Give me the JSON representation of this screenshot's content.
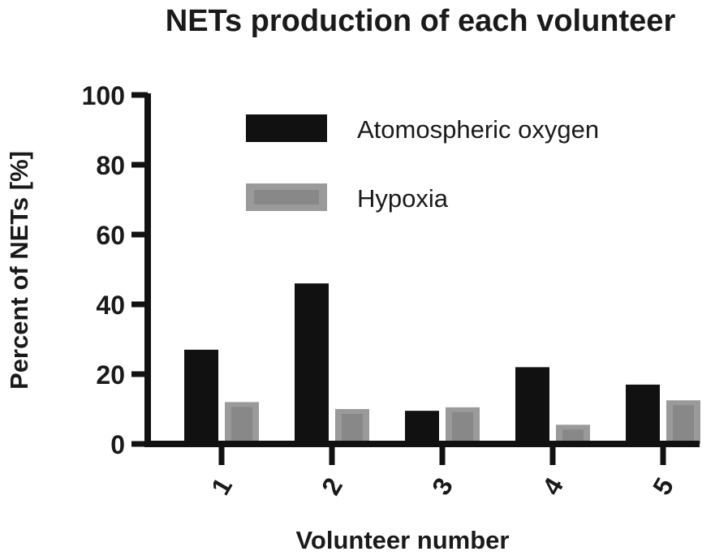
{
  "chart_data": {
    "type": "bar",
    "title": "NETs production of each volunteer",
    "xlabel": "Volunteer number",
    "ylabel": "Percent of NETs [%]",
    "categories": [
      "1",
      "2",
      "3",
      "4",
      "5"
    ],
    "ylim": [
      0,
      100
    ],
    "yticks": [
      "0",
      "20",
      "40",
      "60",
      "80",
      "100"
    ],
    "grid": false,
    "legend_position": "top-right",
    "series": [
      {
        "name": "Atomospheric oxygen",
        "values": [
          27,
          46,
          9.5,
          22,
          17
        ],
        "color": "#111111"
      },
      {
        "name": "Hypoxia",
        "values": [
          12,
          10,
          10.5,
          5.5,
          12.5
        ],
        "color": "#9a9a9a"
      }
    ]
  }
}
